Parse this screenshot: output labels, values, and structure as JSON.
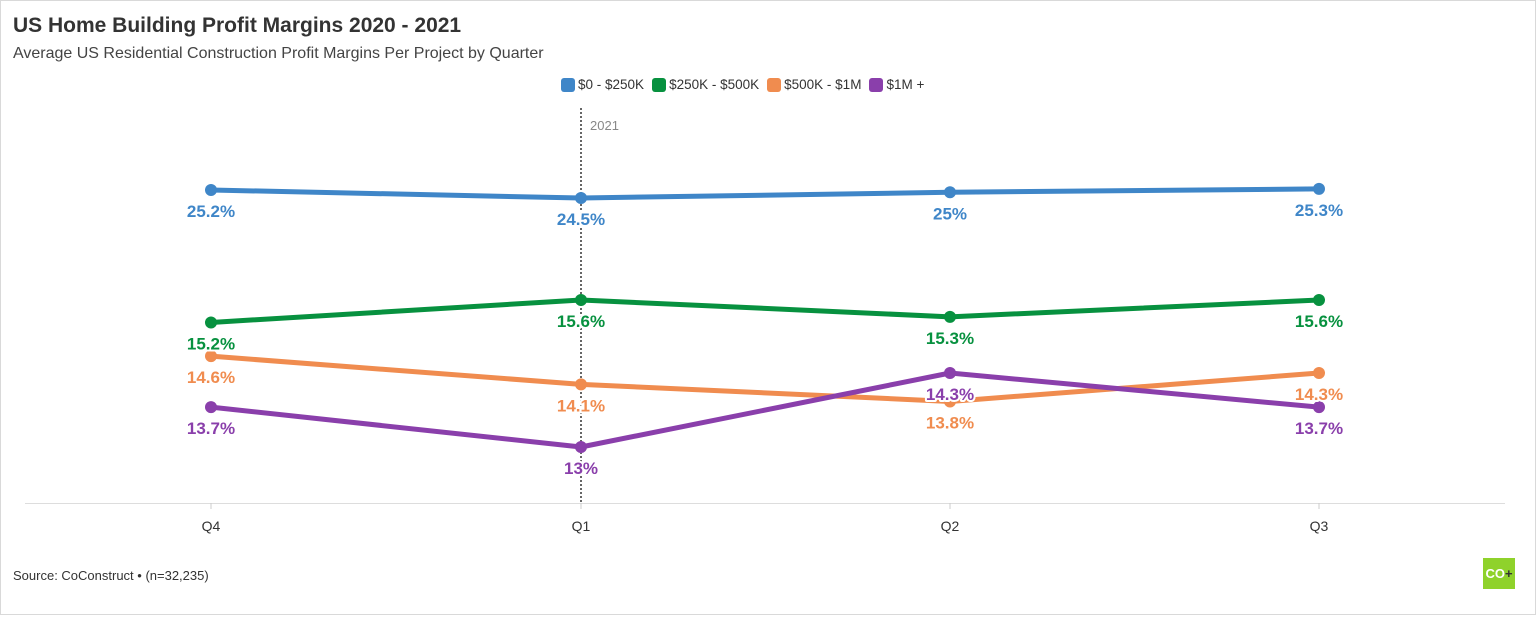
{
  "chart_data": {
    "type": "line",
    "title": "US Home Building Profit Margins 2020 - 2021",
    "subtitle": "Average US Residential Construction Profit Margins Per Project by Quarter",
    "categories": [
      "Q4",
      "Q1",
      "Q2",
      "Q3"
    ],
    "annotation": "2021",
    "legend_position": "top-center",
    "grid": false,
    "series": [
      {
        "name": "$0 - $250K",
        "color": "#3f86c8",
        "values": [
          25.2,
          24.5,
          25,
          25.3
        ],
        "labels": [
          "25.2%",
          "24.5%",
          "25%",
          "25.3%"
        ]
      },
      {
        "name": "$250K - $500K",
        "color": "#07913f",
        "values": [
          15.2,
          15.6,
          15.3,
          15.6
        ],
        "labels": [
          "15.2%",
          "15.6%",
          "15.3%",
          "15.6%"
        ]
      },
      {
        "name": "$500K - $1M",
        "color": "#f08c4f",
        "values": [
          14.6,
          14.1,
          13.8,
          14.3
        ],
        "labels": [
          "14.6%",
          "14.1%",
          "13.8%",
          "14.3%"
        ]
      },
      {
        "name": "$1M +",
        "color": "#8a3fab",
        "values": [
          13.7,
          13,
          14.3,
          13.7
        ],
        "labels": [
          "13.7%",
          "13%",
          "14.3%",
          "13.7%"
        ]
      }
    ]
  },
  "footer": {
    "source": "Source: CoConstruct • (n=32,235)",
    "logo_text": "CO",
    "logo_plus": "+"
  }
}
